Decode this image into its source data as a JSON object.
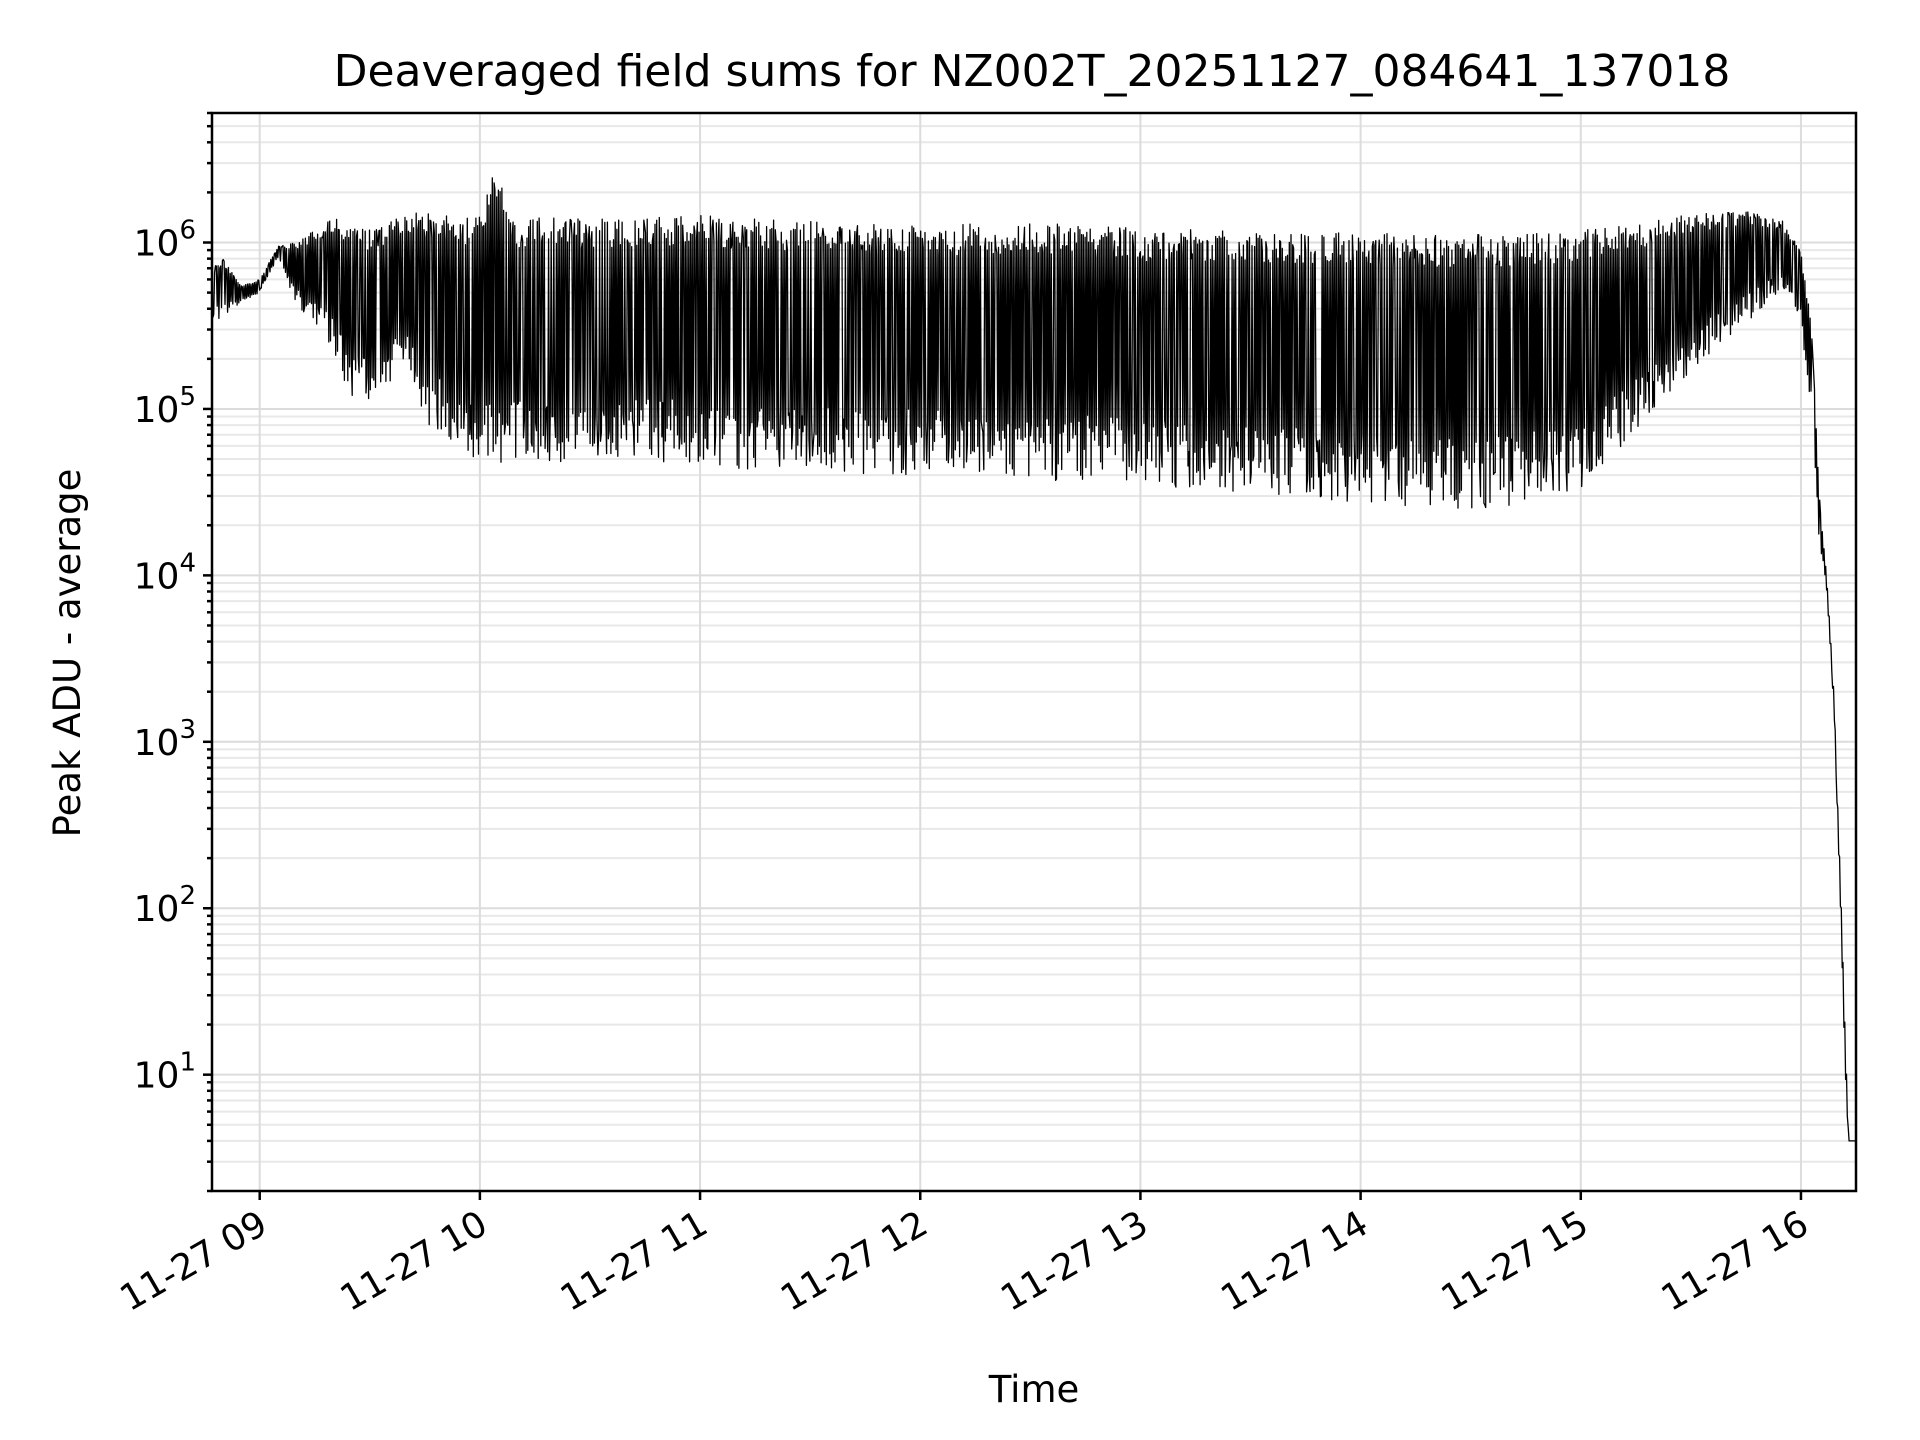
{
  "chart_data": {
    "type": "line",
    "title": "Deaveraged field sums for NZ002T_20251127_084641_137018",
    "xlabel": "Time",
    "ylabel": "Peak ADU - average",
    "yscale": "log",
    "grid": true,
    "x_range": [
      "2025-11-27 08:47",
      "2025-11-27 16:15"
    ],
    "ylim": [
      2,
      6000000
    ],
    "x_ticks": [
      "11-27 09",
      "11-27 10",
      "11-27 11",
      "11-27 12",
      "11-27 13",
      "11-27 14",
      "11-27 15",
      "11-27 16"
    ],
    "y_ticks": [
      {
        "value": 10,
        "base": "10",
        "exp": "1"
      },
      {
        "value": 100,
        "base": "10",
        "exp": "2"
      },
      {
        "value": 1000,
        "base": "10",
        "exp": "3"
      },
      {
        "value": 10000,
        "base": "10",
        "exp": "4"
      },
      {
        "value": 100000,
        "base": "10",
        "exp": "5"
      },
      {
        "value": 1000000,
        "base": "10",
        "exp": "6"
      }
    ],
    "line_color": "#000000",
    "series": [
      {
        "description_values": "approximate envelope of the dense signal",
        "time": [
          "08:47",
          "08:50",
          "08:55",
          "09:00",
          "09:05",
          "09:10",
          "09:15",
          "09:20",
          "09:25",
          "09:30",
          "09:35",
          "09:40",
          "09:45",
          "09:50",
          "09:55",
          "10:00",
          "10:04",
          "10:10",
          "10:20",
          "10:30",
          "10:45",
          "11:00",
          "11:15",
          "11:30",
          "11:45",
          "12:00",
          "12:15",
          "12:30",
          "12:45",
          "13:00",
          "13:15",
          "13:30",
          "13:45",
          "14:00",
          "14:15",
          "14:30",
          "14:45",
          "15:00",
          "15:15",
          "15:30",
          "15:45",
          "15:55",
          "16:00",
          "16:03",
          "16:05",
          "16:07",
          "16:09",
          "16:11",
          "16:12",
          "16:13",
          "16:14",
          "16:15"
        ],
        "low": [
          300000,
          350000,
          420000,
          500000,
          800000,
          400000,
          300000,
          200000,
          100000,
          90000,
          120000,
          150000,
          70000,
          60000,
          50000,
          40000,
          38000,
          40000,
          40000,
          42000,
          40000,
          38000,
          36000,
          35000,
          34000,
          33000,
          32000,
          31000,
          30000,
          28000,
          27000,
          26000,
          24000,
          22000,
          21000,
          20000,
          22000,
          28000,
          60000,
          150000,
          300000,
          500000,
          300000,
          80000,
          15000,
          8000,
          1500,
          60,
          10,
          4,
          4,
          4
        ],
        "high": [
          700000,
          800000,
          550000,
          600000,
          950000,
          1000000,
          1200000,
          1400000,
          1300000,
          1200000,
          1300000,
          1500000,
          1500000,
          1500000,
          1400000,
          1500000,
          3000000,
          1400000,
          1450000,
          1400000,
          1400000,
          1450000,
          1400000,
          1350000,
          1300000,
          1300000,
          1300000,
          1300000,
          1300000,
          1200000,
          1200000,
          1150000,
          1150000,
          1150000,
          1150000,
          1150000,
          1150000,
          1200000,
          1300000,
          1500000,
          1550000,
          1350000,
          900000,
          300000,
          30000,
          10000,
          2000,
          100,
          20,
          4,
          4,
          4
        ]
      }
    ]
  }
}
